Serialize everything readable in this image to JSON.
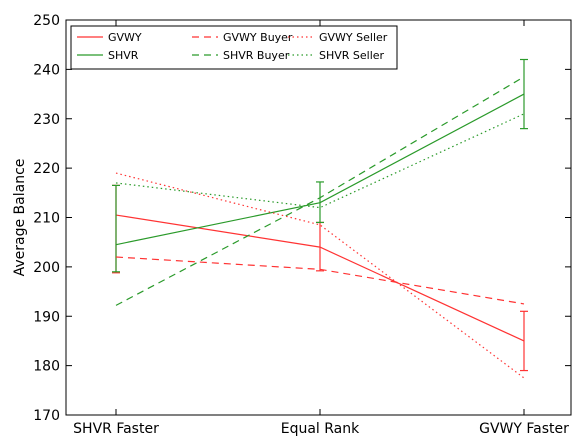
{
  "chart_data": {
    "type": "line",
    "title": "",
    "xlabel": "",
    "ylabel": "Average Balance",
    "categories": [
      "SHVR Faster",
      "Equal Rank",
      "GVWY Faster"
    ],
    "ylim": [
      170,
      250
    ],
    "yticks": [
      170,
      180,
      190,
      200,
      210,
      220,
      230,
      240,
      250
    ],
    "grid": false,
    "legend_position": "top-left",
    "series": [
      {
        "name": "GVWY",
        "color": "#ff3333",
        "style": "solid",
        "values": [
          210.5,
          204.0,
          185.0
        ],
        "error": [
          [
            198.8,
            216.5
          ],
          [
            199.2,
            209.0
          ],
          [
            179.0,
            191.0
          ]
        ]
      },
      {
        "name": "SHVR",
        "color": "#2a9a2a",
        "style": "solid",
        "values": [
          204.5,
          213.0,
          235.0
        ],
        "error": [
          [
            199.0,
            216.5
          ],
          [
            209.0,
            217.2
          ],
          [
            228.0,
            242.0
          ]
        ]
      },
      {
        "name": "GVWY Buyer",
        "color": "#ff3333",
        "style": "dashed",
        "values": [
          202.0,
          199.5,
          192.5
        ]
      },
      {
        "name": "SHVR Buyer",
        "color": "#2a9a2a",
        "style": "dashed",
        "values": [
          192.2,
          214.0,
          238.5
        ]
      },
      {
        "name": "GVWY Seller",
        "color": "#ff3333",
        "style": "dotted",
        "values": [
          219.0,
          208.5,
          177.5
        ]
      },
      {
        "name": "SHVR Seller",
        "color": "#2a9a2a",
        "style": "dotted",
        "values": [
          217.0,
          212.0,
          231.0
        ]
      }
    ]
  }
}
